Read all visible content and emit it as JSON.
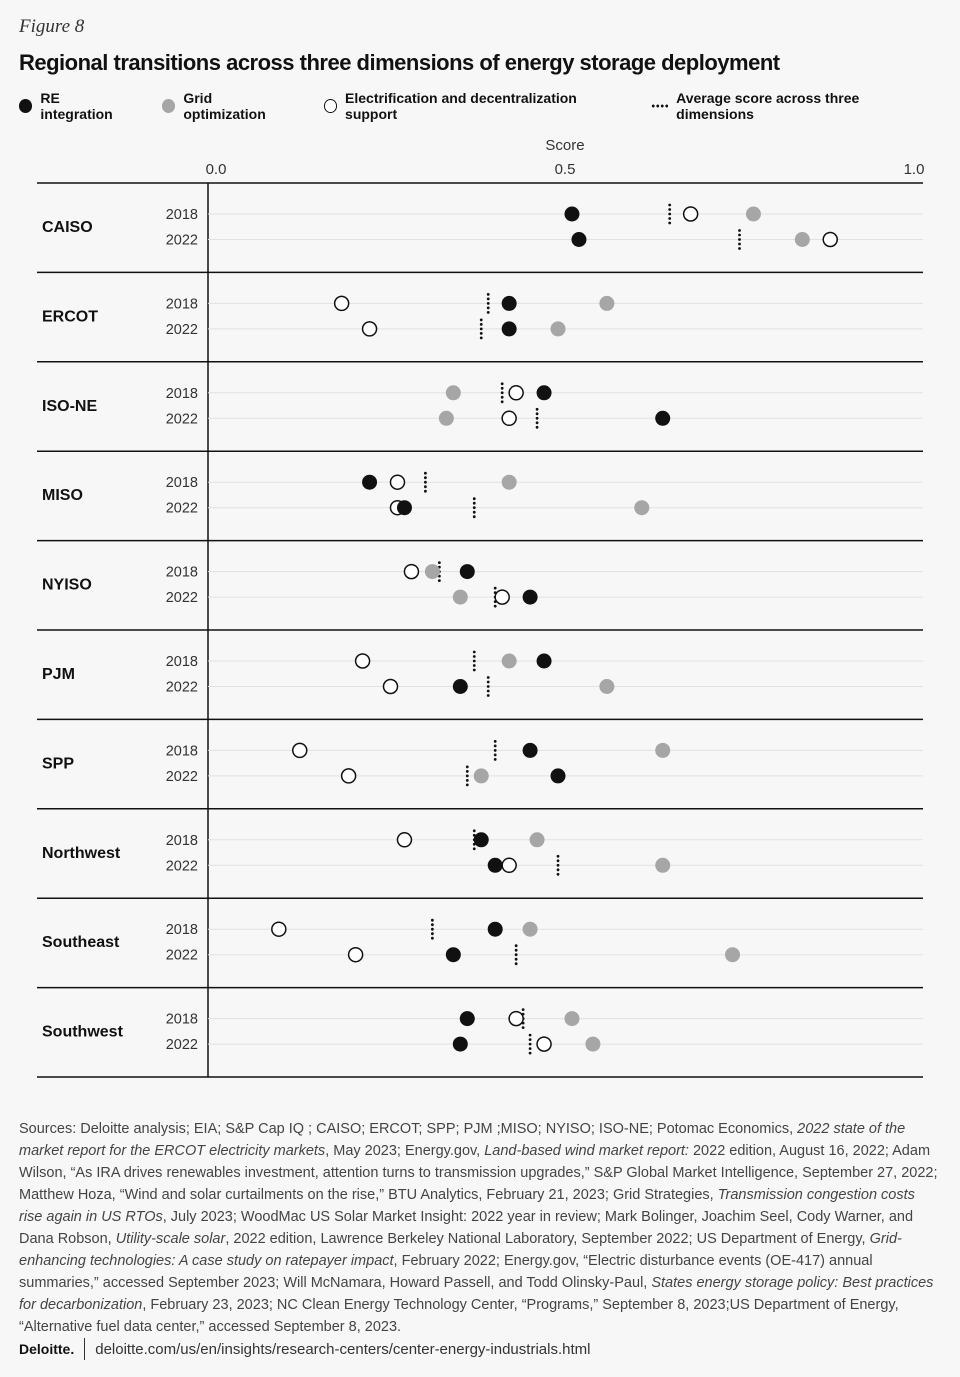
{
  "figure_label": "Figure 8",
  "chart_data": {
    "type": "scatter",
    "title": "Regional transitions across three dimensions of energy storage deployment",
    "xlabel": "Score",
    "xlim": [
      0,
      1
    ],
    "xticks": [
      "0.0",
      "0.5",
      "1.0"
    ],
    "legend": [
      {
        "key": "re",
        "label": "RE integration",
        "color": "#111111"
      },
      {
        "key": "grid",
        "label": "Grid optimization",
        "color": "#a6a6a6"
      },
      {
        "key": "elec",
        "label": "Electrification and decentralization support",
        "color": "#ffffff"
      },
      {
        "key": "avg",
        "label": "Average score across three dimensions",
        "color": "#111111"
      }
    ],
    "years": [
      "2018",
      "2022"
    ],
    "regions": [
      {
        "name": "CAISO",
        "data": [
          {
            "re": 0.51,
            "grid": 0.77,
            "elec": 0.68,
            "avg": 0.65
          },
          {
            "re": 0.52,
            "grid": 0.84,
            "elec": 0.88,
            "avg": 0.75
          }
        ]
      },
      {
        "name": "ERCOT",
        "data": [
          {
            "re": 0.42,
            "grid": 0.56,
            "elec": 0.18,
            "avg": 0.39
          },
          {
            "re": 0.42,
            "grid": 0.49,
            "elec": 0.22,
            "avg": 0.38
          }
        ]
      },
      {
        "name": "ISO-NE",
        "data": [
          {
            "re": 0.47,
            "grid": 0.34,
            "elec": 0.43,
            "avg": 0.41
          },
          {
            "re": 0.64,
            "grid": 0.33,
            "elec": 0.42,
            "avg": 0.46
          }
        ]
      },
      {
        "name": "MISO",
        "data": [
          {
            "re": 0.22,
            "grid": 0.42,
            "elec": 0.26,
            "avg": 0.3
          },
          {
            "re": 0.27,
            "grid": 0.61,
            "elec": 0.26,
            "avg": 0.37
          }
        ]
      },
      {
        "name": "NYISO",
        "data": [
          {
            "re": 0.36,
            "grid": 0.31,
            "elec": 0.28,
            "avg": 0.32
          },
          {
            "re": 0.45,
            "grid": 0.35,
            "elec": 0.41,
            "avg": 0.4
          }
        ]
      },
      {
        "name": "PJM",
        "data": [
          {
            "re": 0.47,
            "grid": 0.42,
            "elec": 0.21,
            "avg": 0.37
          },
          {
            "re": 0.35,
            "grid": 0.56,
            "elec": 0.25,
            "avg": 0.39
          }
        ]
      },
      {
        "name": "SPP",
        "data": [
          {
            "re": 0.45,
            "grid": 0.64,
            "elec": 0.12,
            "avg": 0.4
          },
          {
            "re": 0.49,
            "grid": 0.38,
            "elec": 0.19,
            "avg": 0.36
          }
        ]
      },
      {
        "name": "Northwest",
        "data": [
          {
            "re": 0.38,
            "grid": 0.46,
            "elec": 0.27,
            "avg": 0.37
          },
          {
            "re": 0.4,
            "grid": 0.64,
            "elec": 0.42,
            "avg": 0.49
          }
        ]
      },
      {
        "name": "Southeast",
        "data": [
          {
            "re": 0.4,
            "grid": 0.45,
            "elec": 0.09,
            "avg": 0.31
          },
          {
            "re": 0.34,
            "grid": 0.74,
            "elec": 0.2,
            "avg": 0.43
          }
        ]
      },
      {
        "name": "Southwest",
        "data": [
          {
            "re": 0.36,
            "grid": 0.51,
            "elec": 0.43,
            "avg": 0.44
          },
          {
            "re": 0.35,
            "grid": 0.54,
            "elec": 0.47,
            "avg": 0.45
          }
        ]
      }
    ]
  },
  "sources": [
    {
      "t": "Sources: Deloitte analysis; EIA; S&P Cap IQ ; CAISO; ERCOT; SPP; PJM ;MISO; NYISO; ISO-NE; Potomac Economics, ",
      "i": false
    },
    {
      "t": "2022 state of the market report for the ERCOT electricity markets",
      "i": true
    },
    {
      "t": ", May 2023; Energy.gov, ",
      "i": false
    },
    {
      "t": "Land-based wind market report:",
      "i": true
    },
    {
      "t": " 2022 edition, August 16, 2022; Adam Wilson, “As IRA drives renewables investment, attention turns to transmission upgrades,” S&P Global Market Intelligence, September 27, 2022; Matthew Hoza, “Wind and solar curtailments on the rise,” BTU Analytics, February 21, 2023; Grid Strategies, ",
      "i": false
    },
    {
      "t": "Transmission congestion costs rise again in US RTOs",
      "i": true
    },
    {
      "t": ", July 2023; WoodMac US Solar Market Insight: 2022 year in review; Mark Bolinger, Joachim Seel, Cody Warner, and Dana Robson, ",
      "i": false
    },
    {
      "t": "Utility-scale solar",
      "i": true
    },
    {
      "t": ", 2022 edition, Lawrence Berkeley National Laboratory, September 2022; US Department of Energy, ",
      "i": false
    },
    {
      "t": "Grid-enhancing technologies: A case study on ratepayer impact",
      "i": true
    },
    {
      "t": ", February 2022; Energy.gov, “Electric disturbance events (OE-417) annual summaries,” accessed September 2023; Will McNamara, Howard Passell, and Todd Olinsky-Paul, ",
      "i": false
    },
    {
      "t": "States energy storage policy: Best practices for decarbonization",
      "i": true
    },
    {
      "t": ", February 23, 2023; NC Clean Energy Technology Center, “Programs,” September 8, 2023;US Department of Energy, “Alternative fuel data center,” accessed September 8, 2023.",
      "i": false
    }
  ],
  "footer": {
    "logo": "Deloitte.",
    "url": "deloitte.com/us/en/insights/research-centers/center-energy-industrials.html"
  }
}
